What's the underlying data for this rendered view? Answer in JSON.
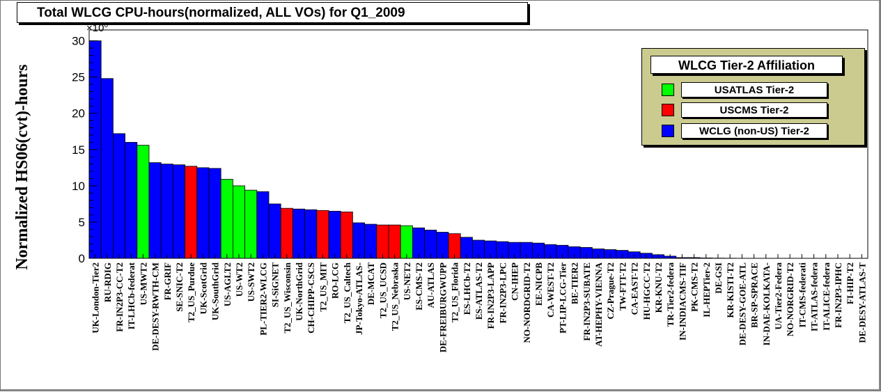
{
  "title": "Total WLCG CPU-hours(normalized, ALL VOs) for Q1_2009",
  "ylabel": "Normalized HS06(cvt)-hours",
  "exponent": {
    "base": "×10",
    "power": "6"
  },
  "legend": {
    "title": "WLCG Tier-2 Affiliation",
    "items": [
      {
        "label": "USATLAS Tier-2",
        "color": "#00ff00"
      },
      {
        "label": "USCMS Tier-2",
        "color": "#ff0000"
      },
      {
        "label": "WCLG (non-US) Tier-2",
        "color": "#0000ff"
      }
    ]
  },
  "colors": {
    "axis": "#000000",
    "bar_outline": "#000000"
  },
  "chart_data": {
    "type": "bar",
    "title": "Total WLCG CPU-hours(normalized, ALL VOs) for Q1_2009",
    "ylabel": "Normalized HS06(cvt)-hours",
    "y_multiplier": 1000000,
    "ylim": [
      0,
      31.5
    ],
    "yticks": [
      0,
      5,
      10,
      15,
      20,
      25,
      30
    ],
    "grid": false,
    "legend_position": "top-right",
    "categories": [
      "UK-London-Tier2",
      "RU-RDIG",
      "FR-IN2P3-CC-T2",
      "IT-LHCb-federat",
      "US-MWT2",
      "DE-DESY-RWTH-CM",
      "FR-GRIF",
      "SE-SNIC-T2",
      "T2_US_Purdue",
      "UK-ScotGrid",
      "UK-SouthGrid",
      "US-AGLT2",
      "US-WT2",
      "US-SWT2",
      "PL-TIER2-WLCG",
      "SI-SiGNET",
      "T2_US_Wisconsin",
      "UK-NorthGrid",
      "CH-CHIPP-CSCS",
      "T2_US_MIT",
      "RO-LCG",
      "T2_US_Caltech",
      "JP-Tokyo-ATLAS-",
      "DE-MCAT",
      "T2_US_UCSD",
      "T2_US_Nebraska",
      "US-NET2",
      "ES-CMS-T2",
      "AU-ATLAS",
      "DE-FREIBURGWUPP",
      "T2_US_Florida",
      "ES-LHCb-T2",
      "ES-ATLAS-T2",
      "FR-IN2P3-LAPP",
      "FR-IN2P3-LPC",
      "CN-IHEP",
      "NO-NORDGRID-T2",
      "EE-NICPB",
      "CA-WEST-T2",
      "PT-LIP-LCG-Tier",
      "BE-TIER2",
      "FR-IN2P3-SUBATE",
      "AT-HEPHY-VIENNA",
      "CZ-Prague-T2",
      "TW-FTT-T2",
      "CA-EAST-T2",
      "HU-HGCC-T2",
      "KR-KNU-T2",
      "TR-Tier2-federa",
      "IN-INDIACMS-TIF",
      "PK-CMS-T2",
      "IL-HEPTier-2",
      "DE-GSI",
      "KR-KISTI-T2",
      "DE-DESY-GOE-ATL",
      "BR-SP-SPRACE",
      "IN-DAE-KOLKATA-",
      "UA-Tier2-Federa",
      "NO-NORGRID-T2",
      "IT-CMS-federati",
      "IT-ATLAS-federa",
      "IT-ALICE-federa",
      "FR-IN2P3-IPHC",
      "FI-HIP-T2",
      "DE-DESY-ATLAS-T"
    ],
    "values": [
      30.0,
      24.8,
      17.2,
      16.0,
      15.6,
      13.2,
      13.0,
      12.9,
      12.7,
      12.5,
      12.4,
      10.9,
      10.0,
      9.4,
      9.2,
      7.5,
      6.9,
      6.8,
      6.7,
      6.6,
      6.5,
      6.4,
      4.9,
      4.7,
      4.6,
      4.6,
      4.5,
      4.2,
      3.9,
      3.6,
      3.4,
      2.9,
      2.5,
      2.4,
      2.3,
      2.2,
      2.2,
      2.1,
      1.9,
      1.8,
      1.6,
      1.5,
      1.3,
      1.2,
      1.1,
      0.9,
      0.7,
      0.5,
      0.3,
      0.1,
      0.1,
      0.05,
      0.03,
      0.02,
      0.01,
      0.01,
      0,
      0,
      0,
      0,
      0,
      0,
      0,
      0,
      0
    ],
    "groups": [
      "WCLG",
      "WCLG",
      "WCLG",
      "WCLG",
      "USATLAS",
      "WCLG",
      "WCLG",
      "WCLG",
      "USCMS",
      "WCLG",
      "WCLG",
      "USATLAS",
      "USATLAS",
      "USATLAS",
      "WCLG",
      "WCLG",
      "USCMS",
      "WCLG",
      "WCLG",
      "USCMS",
      "WCLG",
      "USCMS",
      "WCLG",
      "WCLG",
      "USCMS",
      "USCMS",
      "USATLAS",
      "WCLG",
      "WCLG",
      "WCLG",
      "USCMS",
      "WCLG",
      "WCLG",
      "WCLG",
      "WCLG",
      "WCLG",
      "WCLG",
      "WCLG",
      "WCLG",
      "WCLG",
      "WCLG",
      "WCLG",
      "WCLG",
      "WCLG",
      "WCLG",
      "WCLG",
      "WCLG",
      "WCLG",
      "WCLG",
      "WCLG",
      "WCLG",
      "WCLG",
      "WCLG",
      "WCLG",
      "WCLG",
      "WCLG",
      "WCLG",
      "WCLG",
      "WCLG",
      "WCLG",
      "WCLG",
      "WCLG",
      "WCLG",
      "WCLG",
      "WCLG"
    ],
    "group_colors": {
      "USATLAS": "#00ff00",
      "USCMS": "#ff0000",
      "WCLG": "#0000ff"
    }
  }
}
